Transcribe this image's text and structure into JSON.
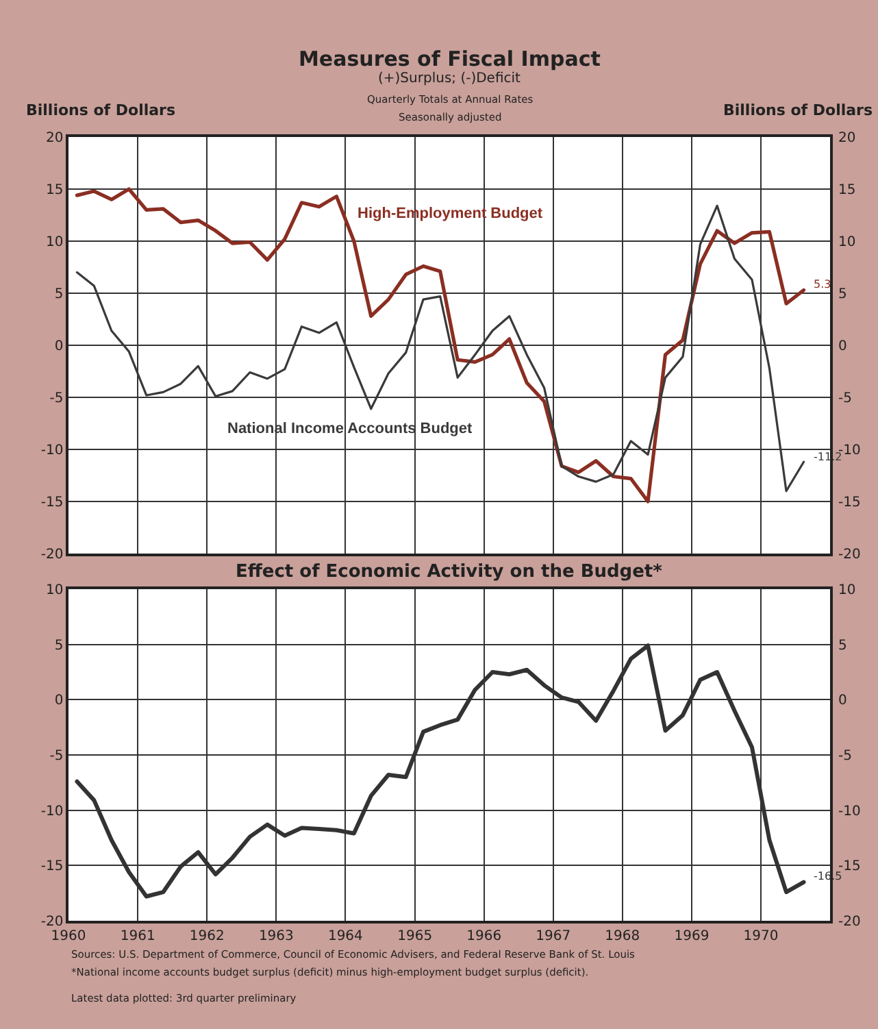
{
  "chart_data": [
    {
      "type": "line",
      "title": "Measures of Fiscal Impact",
      "subtitle": "(+)Surplus; (-)Deficit\nQuarterly Totals at Annual Rates\nSeasonally adjusted",
      "ylabel": "Billions of Dollars",
      "y2label": "Billions of Dollars",
      "x": [
        "1960-02-15",
        "1960-05-15",
        "1960-08-15",
        "1960-11-15",
        "1961-02-15",
        "1961-05-15",
        "1961-08-15",
        "1961-11-15",
        "1962-02-15",
        "1962-05-15",
        "1962-08-15",
        "1962-11-15",
        "1963-02-15",
        "1963-05-15",
        "1963-08-15",
        "1963-11-15",
        "1964-02-15",
        "1964-05-15",
        "1964-08-15",
        "1964-11-15",
        "1965-02-15",
        "1965-05-15",
        "1965-08-15",
        "1965-11-15",
        "1966-02-15",
        "1966-05-15",
        "1966-08-15",
        "1966-11-15",
        "1967-02-15",
        "1967-05-15",
        "1967-08-15",
        "1967-11-15",
        "1968-02-15",
        "1968-05-15",
        "1968-08-15",
        "1968-11-15",
        "1969-02-15",
        "1969-05-15",
        "1969-08-15",
        "1969-11-15",
        "1970-02-15",
        "1970-05-15",
        "1970-08-15"
      ],
      "series": [
        {
          "name": "High-Employment Budget",
          "color": "#8b2e22",
          "values": [
            14.4,
            14.8,
            14.0,
            15.0,
            13.0,
            13.1,
            11.8,
            12.0,
            11.0,
            9.8,
            9.9,
            8.2,
            10.2,
            13.7,
            13.3,
            14.3,
            10.0,
            2.8,
            4.4,
            6.8,
            7.6,
            7.1,
            -1.4,
            -1.6,
            -0.9,
            0.6,
            -3.6,
            -5.4,
            -11.6,
            -12.2,
            -11.1,
            -12.6,
            -12.8,
            -15.0,
            -0.9,
            0.5,
            7.8,
            11.0,
            9.8,
            10.8,
            10.9,
            4.0,
            5.3
          ]
        },
        {
          "name": "National Income Accounts Budget",
          "color": "#3a3a3a",
          "values": [
            7.0,
            5.7,
            1.4,
            -0.6,
            -4.8,
            -4.5,
            -3.7,
            -2.0,
            -4.9,
            -4.4,
            -2.6,
            -3.2,
            -2.3,
            1.8,
            1.2,
            2.2,
            -2.1,
            -6.1,
            -2.7,
            -0.7,
            4.4,
            4.7,
            -3.1,
            -0.9,
            1.4,
            2.8,
            -0.9,
            -4.1,
            -11.6,
            -12.6,
            -13.1,
            -12.4,
            -9.2,
            -10.5,
            -3.1,
            -1.1,
            9.7,
            13.4,
            8.3,
            6.3,
            -2.2,
            -14.0,
            -11.2
          ]
        }
      ],
      "annotations": [
        {
          "text": "5.3",
          "x": "1970-08-15",
          "y": 5.3
        },
        {
          "text": "-11.2",
          "x": "1970-08-15",
          "y": -11.2
        }
      ],
      "xlim": [
        "1960",
        "1971"
      ],
      "xticks": [
        "1960",
        "1961",
        "1962",
        "1963",
        "1964",
        "1965",
        "1966",
        "1967",
        "1968",
        "1969",
        "1970"
      ],
      "ylim": [
        -20,
        20
      ],
      "yticks": [
        -20,
        -15,
        -10,
        -5,
        0,
        5,
        10,
        15,
        20
      ],
      "y2lim": [
        -20,
        20
      ],
      "y2ticks": [
        -20,
        -15,
        -10,
        -5,
        0,
        5,
        10,
        15,
        20
      ],
      "tick_labels": "y",
      "grid": true,
      "marker": "none",
      "line_style": "solid"
    },
    {
      "type": "line",
      "title": "Effect of Economic Activity on the Budget*",
      "x": [
        "1960-02-15",
        "1960-05-15",
        "1960-08-15",
        "1960-11-15",
        "1961-02-15",
        "1961-05-15",
        "1961-08-15",
        "1961-11-15",
        "1962-02-15",
        "1962-05-15",
        "1962-08-15",
        "1962-11-15",
        "1963-02-15",
        "1963-05-15",
        "1963-08-15",
        "1963-11-15",
        "1964-02-15",
        "1964-05-15",
        "1964-08-15",
        "1964-11-15",
        "1965-02-15",
        "1965-05-15",
        "1965-08-15",
        "1965-11-15",
        "1966-02-15",
        "1966-05-15",
        "1966-08-15",
        "1966-11-15",
        "1967-02-15",
        "1967-05-15",
        "1967-08-15",
        "1967-11-15",
        "1968-02-15",
        "1968-05-15",
        "1968-08-15",
        "1968-11-15",
        "1969-02-15",
        "1969-05-15",
        "1969-08-15",
        "1969-11-15",
        "1970-02-15",
        "1970-05-15",
        "1970-08-15"
      ],
      "series": [
        {
          "color": "#333333",
          "values": [
            -7.4,
            -9.1,
            -12.7,
            -15.6,
            -17.8,
            -17.4,
            -15.1,
            -13.8,
            -15.8,
            -14.3,
            -12.4,
            -11.3,
            -12.3,
            -11.6,
            -11.7,
            -11.8,
            -12.1,
            -8.7,
            -6.8,
            -7.0,
            -2.9,
            -2.3,
            -1.8,
            0.9,
            2.5,
            2.3,
            2.7,
            1.3,
            0.2,
            -0.2,
            -1.9,
            0.8,
            3.7,
            4.9,
            -2.8,
            -1.4,
            1.8,
            2.5,
            -1.0,
            -4.3,
            -12.7,
            -17.4,
            -16.5
          ]
        }
      ],
      "annotations": [
        {
          "text": "-16.5",
          "x": "1970-08-15",
          "y": -16.5
        },
        "Sources: U.S. Department of Commerce, Council of Economic Advisers, and Federal Reserve Bank of St. Louis",
        "*National income accounts budget surplus (deficit) minus high-employment budget surplus (deficit).",
        "Latest data plotted: 3rd quarter preliminary"
      ],
      "xlim": [
        "1960",
        "1971"
      ],
      "xticks": [
        "1960",
        "1961",
        "1962",
        "1963",
        "1964",
        "1965",
        "1966",
        "1967",
        "1968",
        "1969",
        "1970"
      ],
      "ylim": [
        -20,
        10
      ],
      "yticks": [
        -20,
        -15,
        -10,
        -5,
        0,
        5,
        10
      ],
      "y2lim": [
        -20,
        10
      ],
      "y2ticks": [
        -20,
        -15,
        -10,
        -5,
        0,
        5,
        10
      ],
      "grid": true,
      "marker": "none",
      "line_style": "solid"
    }
  ]
}
